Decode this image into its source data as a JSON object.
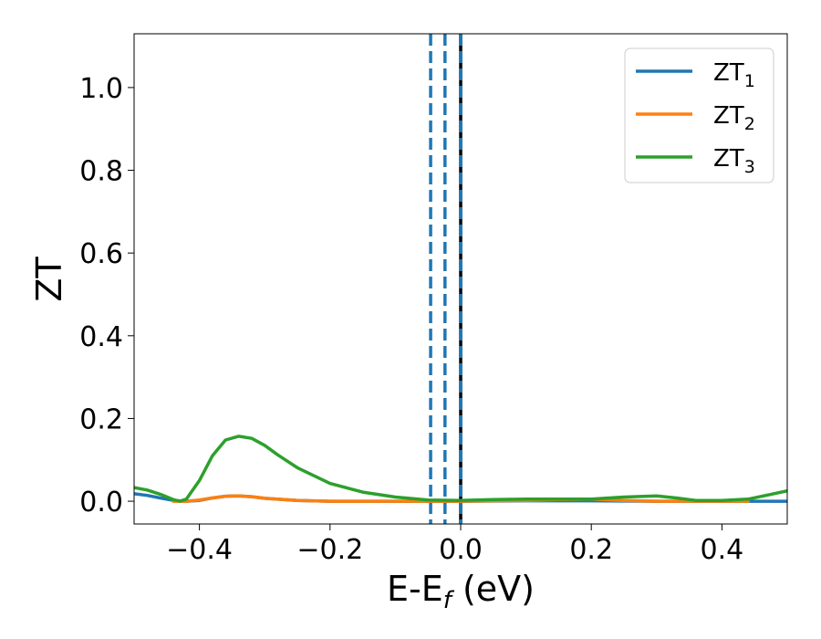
{
  "chart_data": {
    "type": "line",
    "xlabel": "E-E",
    "xlabel_sub": "f",
    "xlabel_unit": " (eV)",
    "ylabel": "ZT",
    "xlim": [
      -0.5,
      0.5
    ],
    "ylim": [
      -0.055,
      1.13
    ],
    "xticks": [
      -0.4,
      -0.2,
      0.0,
      0.2,
      0.4
    ],
    "xtick_labels": [
      "−0.4",
      "−0.2",
      "0.0",
      "0.2",
      "0.4"
    ],
    "yticks": [
      0.0,
      0.2,
      0.4,
      0.6,
      0.8,
      1.0
    ],
    "ytick_labels": [
      "0.0",
      "0.2",
      "0.4",
      "0.6",
      "0.8",
      "1.0"
    ],
    "legend_position": "top-right",
    "vlines": [
      {
        "x": -0.046,
        "style": "dashed",
        "color": "#1f77b4"
      },
      {
        "x": -0.024,
        "style": "dashed",
        "color": "#1f77b4"
      },
      {
        "x": 0.0,
        "style": "solid",
        "color": "#000000"
      },
      {
        "x": 0.0,
        "style": "dashed",
        "color": "#1f77b4"
      }
    ],
    "series": [
      {
        "name": "ZT",
        "name_sub": "1",
        "color": "#1f77b4",
        "points": [
          [
            -0.5,
            0.018
          ],
          [
            -0.48,
            0.014
          ],
          [
            -0.46,
            0.008
          ],
          [
            -0.44,
            0.002
          ],
          [
            -0.42,
            0.0
          ],
          [
            -0.4,
            0.002
          ],
          [
            -0.38,
            0.008
          ],
          [
            -0.36,
            0.012
          ],
          [
            -0.34,
            0.013
          ],
          [
            -0.32,
            0.011
          ],
          [
            -0.3,
            0.007
          ],
          [
            -0.25,
            0.002
          ],
          [
            -0.2,
            0.0
          ],
          [
            -0.1,
            0.0
          ],
          [
            0.0,
            0.0
          ],
          [
            0.1,
            0.001
          ],
          [
            0.2,
            0.001
          ],
          [
            0.3,
            0.0
          ],
          [
            0.4,
            0.0
          ],
          [
            0.5,
            0.0
          ]
        ]
      },
      {
        "name": "ZT",
        "name_sub": "2",
        "color": "#ff7f0e",
        "points": [
          [
            -0.44,
            0.0
          ],
          [
            -0.42,
            0.0
          ],
          [
            -0.4,
            0.003
          ],
          [
            -0.38,
            0.008
          ],
          [
            -0.36,
            0.012
          ],
          [
            -0.34,
            0.013
          ],
          [
            -0.32,
            0.011
          ],
          [
            -0.3,
            0.007
          ],
          [
            -0.25,
            0.002
          ],
          [
            -0.2,
            0.0
          ],
          [
            -0.1,
            0.0
          ],
          [
            0.0,
            0.0
          ],
          [
            0.1,
            0.002
          ],
          [
            0.15,
            0.004
          ],
          [
            0.2,
            0.005
          ],
          [
            0.25,
            0.002
          ],
          [
            0.3,
            0.0
          ],
          [
            0.35,
            0.0
          ],
          [
            0.4,
            0.0
          ],
          [
            0.44,
            0.0
          ]
        ]
      },
      {
        "name": "ZT",
        "name_sub": "3",
        "color": "#2ca02c",
        "points": [
          [
            -0.5,
            0.033
          ],
          [
            -0.48,
            0.027
          ],
          [
            -0.46,
            0.017
          ],
          [
            -0.44,
            0.004
          ],
          [
            -0.43,
            0.0
          ],
          [
            -0.42,
            0.005
          ],
          [
            -0.4,
            0.05
          ],
          [
            -0.38,
            0.11
          ],
          [
            -0.36,
            0.148
          ],
          [
            -0.34,
            0.157
          ],
          [
            -0.32,
            0.152
          ],
          [
            -0.3,
            0.135
          ],
          [
            -0.28,
            0.112
          ],
          [
            -0.25,
            0.081
          ],
          [
            -0.2,
            0.043
          ],
          [
            -0.15,
            0.022
          ],
          [
            -0.1,
            0.01
          ],
          [
            -0.05,
            0.003
          ],
          [
            0.0,
            0.002
          ],
          [
            0.05,
            0.004
          ],
          [
            0.1,
            0.005
          ],
          [
            0.15,
            0.005
          ],
          [
            0.2,
            0.005
          ],
          [
            0.25,
            0.01
          ],
          [
            0.3,
            0.013
          ],
          [
            0.33,
            0.008
          ],
          [
            0.36,
            0.002
          ],
          [
            0.4,
            0.002
          ],
          [
            0.44,
            0.005
          ],
          [
            0.47,
            0.015
          ],
          [
            0.5,
            0.025
          ]
        ]
      }
    ]
  }
}
